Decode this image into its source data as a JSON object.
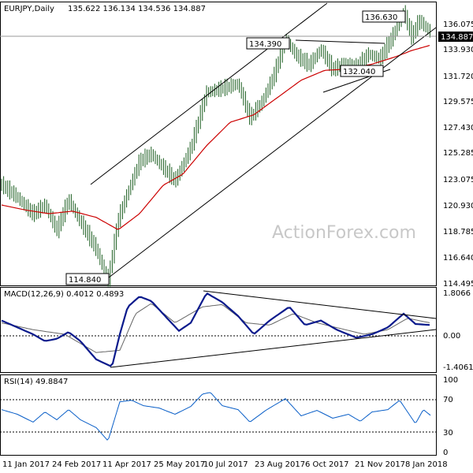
{
  "chart_data": [
    {
      "type": "ohlc",
      "title": "EURJPY,Daily",
      "ohlc_label": "135.622 136.134 134.536 134.887",
      "last_price_label": "134.887",
      "ylim": [
        114.495,
        137.4
      ],
      "y_ticks": [
        "136.075",
        "133.930",
        "131.720",
        "129.575",
        "127.430",
        "125.285",
        "123.075",
        "120.930",
        "118.785",
        "116.640",
        "114.495"
      ],
      "annotations": [
        "136.630",
        "134.390",
        "132.040",
        "114.840"
      ],
      "watermark": "ActionForex.com",
      "colors": {
        "bars": "#1b5e20",
        "ma": "#cc0000",
        "lines": "#000000"
      },
      "series": [
        {
          "name": "",
          "points": [
            [
              0,
              122.6
            ],
            [
              20,
              121.6
            ],
            [
              40,
              120.2
            ],
            [
              55,
              121.0
            ],
            [
              70,
              118.9
            ],
            [
              85,
              121.4
            ],
            [
              100,
              119.6
            ],
            [
              120,
              117.4
            ],
            [
              135,
              114.84
            ],
            [
              148,
              119.8
            ],
            [
              160,
              122.0
            ],
            [
              175,
              124.5
            ],
            [
              190,
              125.1
            ],
            [
              205,
              124.0
            ],
            [
              220,
              122.9
            ],
            [
              240,
              125.6
            ],
            [
              260,
              130.1
            ],
            [
              280,
              130.4
            ],
            [
              300,
              130.8
            ],
            [
              315,
              128.0
            ],
            [
              330,
              129.3
            ],
            [
              345,
              131.4
            ],
            [
              360,
              134.39
            ],
            [
              375,
              133.0
            ],
            [
              390,
              132.3
            ],
            [
              405,
              133.6
            ],
            [
              420,
              131.9
            ],
            [
              435,
              132.5
            ],
            [
              450,
              132.04
            ],
            [
              465,
              133.2
            ],
            [
              480,
              132.8
            ],
            [
              495,
              134.5
            ],
            [
              510,
              136.63
            ],
            [
              520,
              134.6
            ],
            [
              530,
              135.9
            ],
            [
              545,
              134.887
            ]
          ]
        },
        {
          "name": "MA",
          "points": [
            [
              0,
              121.0
            ],
            [
              30,
              120.6
            ],
            [
              60,
              120.3
            ],
            [
              90,
              120.5
            ],
            [
              120,
              120.0
            ],
            [
              148,
              119.0
            ],
            [
              175,
              120.3
            ],
            [
              205,
              122.6
            ],
            [
              230,
              123.5
            ],
            [
              260,
              125.8
            ],
            [
              290,
              127.7
            ],
            [
              320,
              128.3
            ],
            [
              350,
              129.7
            ],
            [
              380,
              131.1
            ],
            [
              410,
              131.9
            ],
            [
              440,
              132.0
            ],
            [
              470,
              132.4
            ],
            [
              500,
              133.0
            ],
            [
              520,
              133.5
            ],
            [
              545,
              133.95
            ]
          ]
        }
      ]
    },
    {
      "type": "line",
      "title": "MACD(12,26,9) 0.4012 0.4893",
      "ylim": [
        -1.62,
        2.0
      ],
      "y_ticks": [
        "1.8066",
        "0.00",
        "-1.4061"
      ],
      "series": [
        {
          "name": "MACD",
          "points": [
            [
              0,
              0.6
            ],
            [
              20,
              0.3
            ],
            [
              40,
              0.0
            ],
            [
              55,
              -0.3
            ],
            [
              70,
              -0.2
            ],
            [
              85,
              0.1
            ],
            [
              100,
              -0.3
            ],
            [
              120,
              -1.1
            ],
            [
              140,
              -1.42
            ],
            [
              150,
              0.0
            ],
            [
              160,
              1.2
            ],
            [
              175,
              1.65
            ],
            [
              190,
              1.45
            ],
            [
              210,
              0.7
            ],
            [
              225,
              0.15
            ],
            [
              240,
              0.5
            ],
            [
              260,
              1.8
            ],
            [
              280,
              1.4
            ],
            [
              300,
              0.8
            ],
            [
              320,
              0.0
            ],
            [
              340,
              0.6
            ],
            [
              365,
              1.2
            ],
            [
              385,
              0.4
            ],
            [
              405,
              0.6
            ],
            [
              425,
              0.2
            ],
            [
              450,
              -0.15
            ],
            [
              470,
              0.0
            ],
            [
              490,
              0.3
            ],
            [
              510,
              0.9
            ],
            [
              525,
              0.45
            ],
            [
              545,
              0.4012
            ]
          ]
        },
        {
          "name": "Signal",
          "points": [
            [
              0,
              0.5
            ],
            [
              40,
              0.2
            ],
            [
              80,
              0.0
            ],
            [
              120,
              -0.8
            ],
            [
              150,
              -0.7
            ],
            [
              170,
              0.9
            ],
            [
              190,
              1.35
            ],
            [
              220,
              0.5
            ],
            [
              255,
              1.2
            ],
            [
              280,
              1.3
            ],
            [
              310,
              0.5
            ],
            [
              340,
              0.4
            ],
            [
              370,
              0.9
            ],
            [
              400,
              0.5
            ],
            [
              430,
              0.25
            ],
            [
              460,
              0.0
            ],
            [
              490,
              0.2
            ],
            [
              515,
              0.7
            ],
            [
              545,
              0.4893
            ]
          ]
        }
      ]
    },
    {
      "type": "line",
      "title": "RSI(14) 49.8847",
      "ylim": [
        0,
        100
      ],
      "y_ticks": [
        "100",
        "70",
        "30",
        "0"
      ],
      "series": [
        {
          "name": "RSI",
          "points": [
            [
              0,
              58
            ],
            [
              20,
              52
            ],
            [
              40,
              42
            ],
            [
              55,
              55
            ],
            [
              70,
              45
            ],
            [
              85,
              58
            ],
            [
              100,
              45
            ],
            [
              120,
              35
            ],
            [
              135,
              18
            ],
            [
              150,
              68
            ],
            [
              165,
              70
            ],
            [
              180,
              63
            ],
            [
              200,
              60
            ],
            [
              220,
              52
            ],
            [
              240,
              62
            ],
            [
              255,
              78
            ],
            [
              265,
              80
            ],
            [
              280,
              63
            ],
            [
              300,
              58
            ],
            [
              315,
              42
            ],
            [
              335,
              57
            ],
            [
              360,
              72
            ],
            [
              380,
              50
            ],
            [
              400,
              57
            ],
            [
              420,
              47
            ],
            [
              440,
              52
            ],
            [
              455,
              43
            ],
            [
              470,
              55
            ],
            [
              490,
              58
            ],
            [
              505,
              70
            ],
            [
              515,
              55
            ],
            [
              525,
              40
            ],
            [
              535,
              58
            ],
            [
              545,
              49.8847
            ]
          ]
        }
      ]
    }
  ],
  "x_ticks": [
    "11 Jan 2017",
    "24 Feb 2017",
    "11 Apr 2017",
    "25 May 2017",
    "10 Jul 2017",
    "23 Aug 2017",
    "6 Oct 2017",
    "21 Nov 2017",
    "8 Jan 2018"
  ]
}
